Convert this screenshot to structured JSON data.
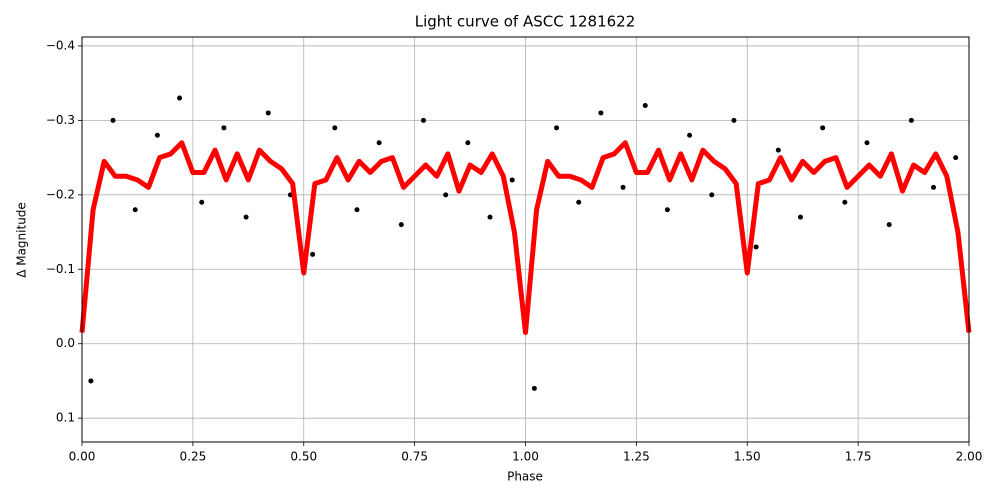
{
  "chart_data": {
    "type": "scatter",
    "title": "Light curve of ASCC 1281622",
    "xlabel": "Phase",
    "ylabel": "Δ Magnitude",
    "xlim": [
      0,
      2
    ],
    "ylim": [
      0.132,
      -0.412
    ],
    "grid": true,
    "xticks": [
      {
        "value": 0,
        "label": "0.00"
      },
      {
        "value": 0.25,
        "label": "0.25"
      },
      {
        "value": 0.5,
        "label": "0.50"
      },
      {
        "value": 0.75,
        "label": "0.75"
      },
      {
        "value": 1,
        "label": "1.00"
      },
      {
        "value": 1.25,
        "label": "1.25"
      },
      {
        "value": 1.5,
        "label": "1.50"
      },
      {
        "value": 1.75,
        "label": "1.75"
      },
      {
        "value": 2,
        "label": "2.00"
      }
    ],
    "yticks": [
      {
        "value": -0.4,
        "label": "−0.4"
      },
      {
        "value": -0.3,
        "label": "−0.3"
      },
      {
        "value": -0.2,
        "label": "−0.2"
      },
      {
        "value": -0.1,
        "label": "−0.1"
      },
      {
        "value": 0,
        "label": "0.0"
      },
      0.1
    ],
    "series": [
      {
        "type": "scatter",
        "color": "#000000",
        "x": [
          0.02,
          0.07,
          0.12,
          0.17,
          0.22,
          0.27,
          0.32,
          0.37,
          0.42,
          0.47,
          0.52,
          0.57,
          0.62,
          0.67,
          0.72,
          0.77,
          0.82,
          0.87,
          0.92,
          0.97,
          1.02,
          1.07,
          1.12,
          1.17,
          1.22,
          1.27,
          1.32,
          1.37,
          1.42,
          1.47,
          1.52,
          1.57,
          1.62,
          1.67,
          1.72,
          1.77,
          1.82,
          1.87,
          1.92,
          1.97
        ],
        "values": [
          0.05,
          -0.3,
          -0.18,
          -0.28,
          -0.33,
          -0.19,
          -0.29,
          -0.17,
          -0.31,
          -0.2,
          -0.12,
          -0.29,
          -0.18,
          -0.27,
          -0.16,
          -0.3,
          -0.2,
          -0.27,
          -0.17,
          -0.22,
          0.06,
          -0.29,
          -0.19,
          -0.31,
          -0.21,
          -0.32,
          -0.18,
          -0.28,
          -0.2,
          -0.3,
          -0.13,
          -0.26,
          -0.17,
          -0.29,
          -0.19,
          -0.27,
          -0.16,
          -0.3,
          -0.21,
          -0.25
        ]
      },
      {
        "type": "line",
        "color": "#ff0000",
        "x": [
          0,
          0.025,
          0.05,
          0.075,
          0.1,
          0.125,
          0.15,
          0.175,
          0.2,
          0.225,
          0.25,
          0.275,
          0.3,
          0.325,
          0.35,
          0.375,
          0.4,
          0.425,
          0.45,
          0.475,
          0.5,
          0.525,
          0.55,
          0.575,
          0.6,
          0.625,
          0.65,
          0.675,
          0.7,
          0.725,
          0.75,
          0.775,
          0.8,
          0.825,
          0.85,
          0.875,
          0.9,
          0.925,
          0.95,
          0.975,
          1,
          1.025,
          1.05,
          1.075,
          1.1,
          1.125,
          1.15,
          1.175,
          1.2,
          1.225,
          1.25,
          1.275,
          1.3,
          1.325,
          1.35,
          1.375,
          1.4,
          1.425,
          1.45,
          1.475,
          1.5,
          1.525,
          1.55,
          1.575,
          1.6,
          1.625,
          1.65,
          1.675,
          1.7,
          1.725,
          1.75,
          1.775,
          1.8,
          1.825,
          1.85,
          1.875,
          1.9,
          1.925,
          1.95,
          1.975,
          2
        ],
        "values": [
          -0.015,
          -0.18,
          -0.245,
          -0.225,
          -0.225,
          -0.22,
          -0.21,
          -0.25,
          -0.255,
          -0.27,
          -0.23,
          -0.23,
          -0.26,
          -0.22,
          -0.255,
          -0.22,
          -0.26,
          -0.245,
          -0.235,
          -0.215,
          -0.095,
          -0.215,
          -0.22,
          -0.25,
          -0.22,
          -0.245,
          -0.23,
          -0.245,
          -0.25,
          -0.21,
          -0.225,
          -0.24,
          -0.225,
          -0.255,
          -0.205,
          -0.24,
          -0.23,
          -0.255,
          -0.225,
          -0.15,
          -0.015,
          -0.18,
          -0.245,
          -0.225,
          -0.225,
          -0.22,
          -0.21,
          -0.25,
          -0.255,
          -0.27,
          -0.23,
          -0.23,
          -0.26,
          -0.22,
          -0.255,
          -0.22,
          -0.26,
          -0.245,
          -0.235,
          -0.215,
          -0.095,
          -0.215,
          -0.22,
          -0.25,
          -0.22,
          -0.245,
          -0.23,
          -0.245,
          -0.25,
          -0.21,
          -0.225,
          -0.24,
          -0.225,
          -0.255,
          -0.205,
          -0.24,
          -0.23,
          -0.255,
          -0.225,
          -0.15,
          -0.015
        ]
      }
    ]
  }
}
